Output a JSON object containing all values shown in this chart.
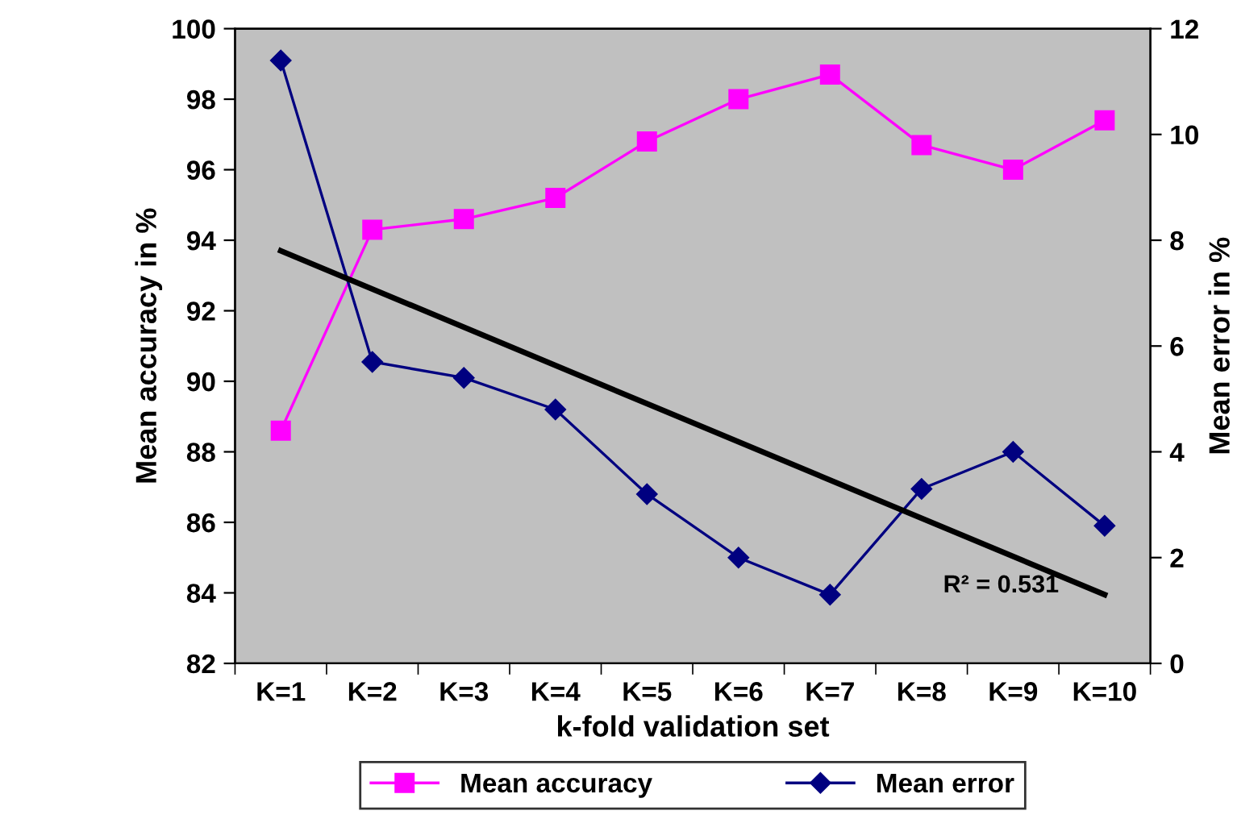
{
  "chart_data": {
    "type": "line",
    "xlabel": "k-fold validation set",
    "ylabel": "Mean accuracy in %",
    "y2label": "Mean error in %",
    "categories": [
      "K=1",
      "K=2",
      "K=3",
      "K=4",
      "K=5",
      "K=6",
      "K=7",
      "K=8",
      "K=9",
      "K=10"
    ],
    "series": [
      {
        "name": "Mean accuracy",
        "color": "#ff00ff",
        "marker": "square",
        "values": [
          88.6,
          94.3,
          94.6,
          95.2,
          96.8,
          98.0,
          98.7,
          96.7,
          96.0,
          97.4
        ]
      },
      {
        "name": "Mean error",
        "color": "#000080",
        "marker": "diamond",
        "axis": "y2",
        "values": [
          11.4,
          5.7,
          5.4,
          4.8,
          3.2,
          2.0,
          1.3,
          3.3,
          4.0,
          2.6
        ]
      },
      {
        "type": "line",
        "color": "#000000",
        "marker": "none",
        "axis": "y2",
        "values": [
          7.8,
          null,
          null,
          null,
          null,
          null,
          null,
          null,
          null,
          1.3
        ]
      }
    ],
    "ylim": [
      82,
      100
    ],
    "yticks": [
      82,
      84,
      86,
      88,
      90,
      92,
      94,
      96,
      98,
      100
    ],
    "y2lim": [
      0,
      12
    ],
    "y2ticks": [
      0,
      2,
      4,
      6,
      8,
      10,
      12
    ],
    "annotations": [
      "R² = 0.531"
    ],
    "grid": false,
    "legend": "bottom",
    "line_style": "solid"
  }
}
